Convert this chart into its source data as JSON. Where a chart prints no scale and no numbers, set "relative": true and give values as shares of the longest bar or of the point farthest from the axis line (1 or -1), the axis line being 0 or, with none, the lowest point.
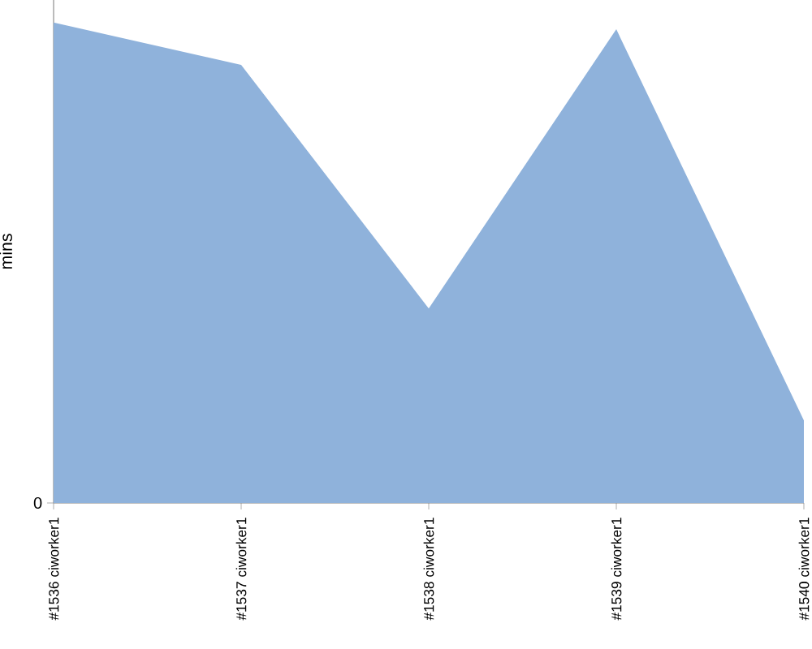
{
  "chart_data": {
    "type": "area",
    "ylabel": "mins",
    "relative": true,
    "annotations": [
      "0"
    ],
    "categories": [
      "#1536 ciworker1",
      "#1537 ciworker1",
      "#1538 ciworker1",
      "#1539 ciworker1",
      "#1540 ciworker1"
    ],
    "series": [
      {
        "color": "#8fb2db",
        "values": [
          1,
          0.912,
          0.405,
          0.986,
          0.172
        ]
      }
    ],
    "grid": false
  }
}
